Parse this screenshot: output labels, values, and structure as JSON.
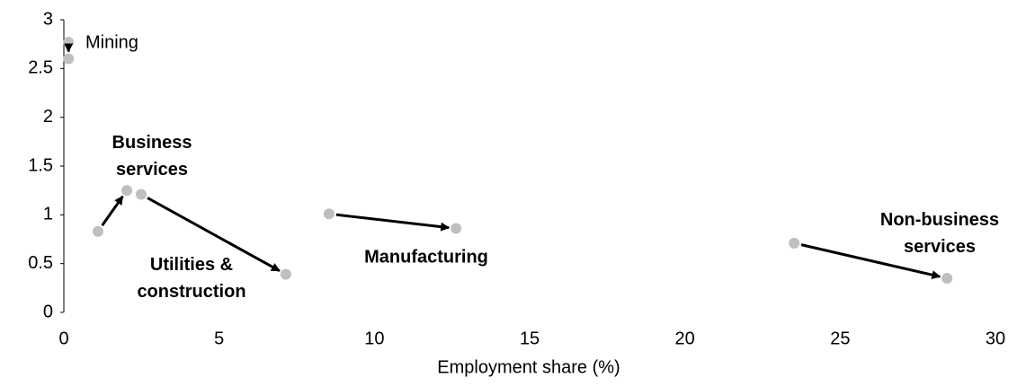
{
  "chart_data": {
    "type": "scatter",
    "x_label": "Employment share (%)",
    "xlim": [
      0,
      30
    ],
    "xticks": [
      0,
      5,
      10,
      15,
      20,
      25,
      30
    ],
    "ylim": [
      0,
      3
    ],
    "yticks": [
      0,
      0.5,
      1,
      1.5,
      2,
      2.5,
      3
    ],
    "marker_color": "#bfbfbf",
    "arrow_color": "#000000",
    "series": [
      {
        "name": "Mining",
        "x": [
          0.15,
          0.15
        ],
        "y": [
          2.77,
          2.6
        ]
      },
      {
        "name": "Business services",
        "x": [
          1.1,
          2.03
        ],
        "y": [
          0.83,
          1.25
        ]
      },
      {
        "name": "Utilities & construction",
        "x": [
          2.49,
          7.15
        ],
        "y": [
          1.21,
          0.39
        ]
      },
      {
        "name": "Manufacturing",
        "x": [
          8.54,
          12.63
        ],
        "y": [
          1.01,
          0.86
        ]
      },
      {
        "name": "Non-business services",
        "x": [
          23.52,
          28.44
        ],
        "y": [
          0.71,
          0.35
        ]
      }
    ]
  }
}
